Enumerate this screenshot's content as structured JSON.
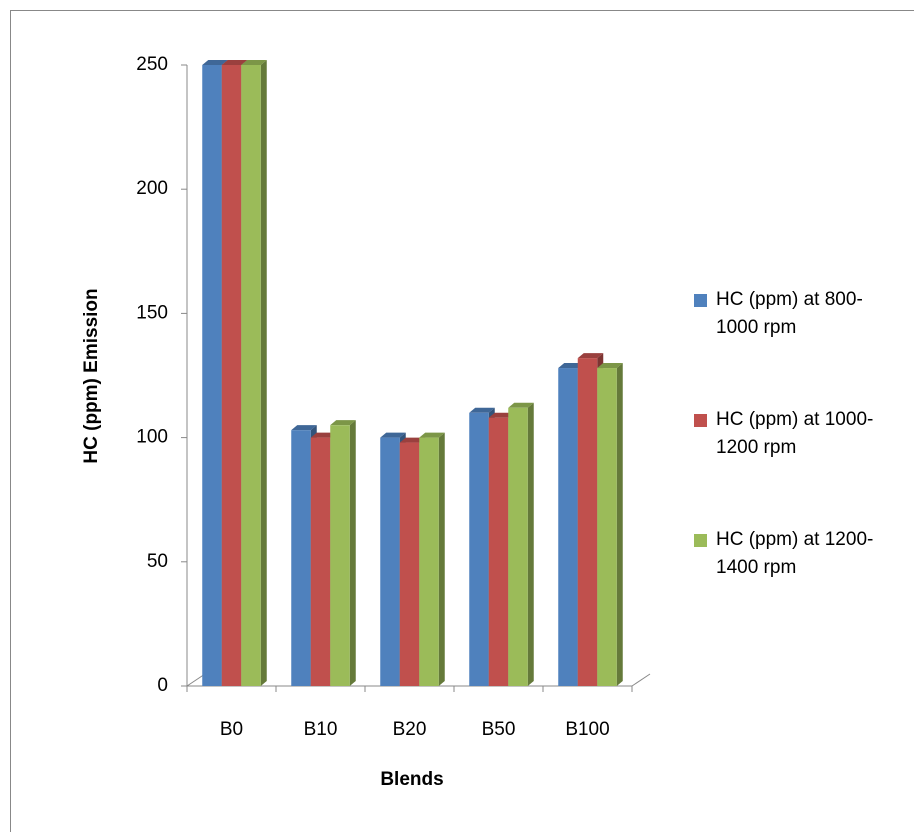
{
  "chart_data": {
    "type": "bar3d",
    "x_label": "Blends",
    "y_label": "HC (ppm) Emission",
    "categories": [
      "B0",
      "B10",
      "B20",
      "B50",
      "B100"
    ],
    "series": [
      {
        "name": "HC (ppm) at 800-1000 rpm",
        "color": "#4f81bd",
        "values": [
          250,
          103,
          100,
          110,
          128
        ]
      },
      {
        "name": "HC (ppm) at 1000-1200 rpm",
        "color": "#c0504d",
        "values": [
          250,
          100,
          98,
          108,
          132
        ]
      },
      {
        "name": "HC (ppm) at 1200-1400 rpm",
        "color": "#9bbb59",
        "values": [
          250,
          105,
          100,
          112,
          128
        ]
      }
    ],
    "ylim": [
      0,
      250
    ],
    "yticks": [
      0,
      50,
      100,
      150,
      200,
      250
    ],
    "grid": false,
    "legend": "right"
  }
}
